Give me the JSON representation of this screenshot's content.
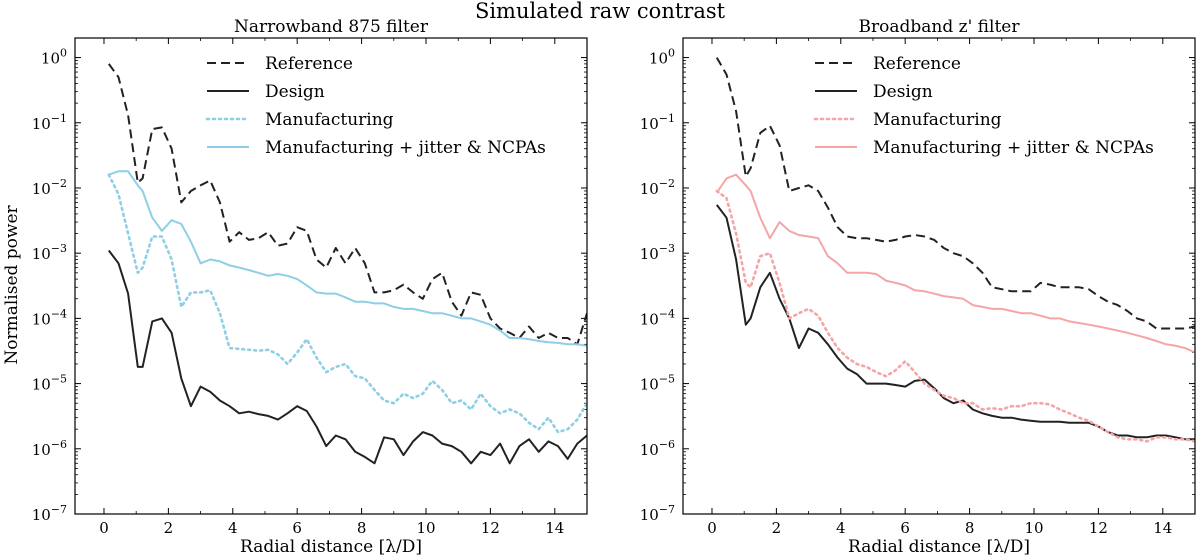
{
  "figure_title": "Simulated raw contrast",
  "chart_data": [
    {
      "type": "line",
      "title": "Narrowband 875 filter",
      "xlabel": "Radial distance [λ/D]",
      "ylabel": "Normalised power",
      "xlim": [
        -0.9,
        15
      ],
      "ylim_log10": [
        -7,
        0.3
      ],
      "yscale": "log",
      "xticks": [
        0,
        2,
        4,
        6,
        8,
        10,
        12,
        14
      ],
      "xtick_labels": [
        "0",
        "2",
        "4",
        "6",
        "8",
        "10",
        "12",
        "14"
      ],
      "yticks_exp": [
        0,
        -1,
        -2,
        -3,
        -4,
        -5,
        -6,
        -7
      ],
      "ytick_labels": [
        "10^0",
        "10^-1",
        "10^-2",
        "10^-3",
        "10^-4",
        "10^-5",
        "10^-6",
        "10^-7"
      ],
      "legend_position": "top-center",
      "series": [
        {
          "name": "Reference",
          "color": "#222222",
          "style": "dashed",
          "x": [
            0.15,
            0.45,
            0.75,
            1.05,
            1.2,
            1.5,
            1.8,
            2.1,
            2.4,
            2.7,
            3.0,
            3.3,
            3.6,
            3.9,
            4.2,
            4.5,
            4.8,
            5.1,
            5.4,
            5.7,
            6.0,
            6.3,
            6.6,
            6.9,
            7.2,
            7.5,
            7.8,
            8.1,
            8.4,
            8.7,
            9.0,
            9.3,
            9.6,
            9.9,
            10.2,
            10.5,
            10.8,
            11.1,
            11.4,
            11.7,
            12.0,
            12.3,
            12.6,
            12.9,
            13.2,
            13.5,
            13.8,
            14.1,
            14.4,
            14.7,
            15.0
          ],
          "y": [
            0.8,
            0.5,
            0.13,
            0.012,
            0.014,
            0.08,
            0.085,
            0.04,
            0.006,
            0.009,
            0.011,
            0.013,
            0.006,
            0.0015,
            0.0021,
            0.0016,
            0.0017,
            0.0021,
            0.0013,
            0.0014,
            0.0025,
            0.0022,
            0.0008,
            0.0006,
            0.0012,
            0.0007,
            0.0012,
            0.0007,
            0.00025,
            0.00025,
            0.00027,
            0.00033,
            0.00025,
            0.0002,
            0.0004,
            0.0005,
            0.00018,
            0.00011,
            0.00025,
            0.00023,
            0.0001,
            7e-05,
            6e-05,
            5e-05,
            7.5e-05,
            5e-05,
            6e-05,
            5e-05,
            5e-05,
            4e-05,
            0.00012
          ]
        },
        {
          "name": "Design",
          "color": "#222222",
          "style": "solid",
          "x": [
            0.15,
            0.45,
            0.75,
            1.05,
            1.2,
            1.5,
            1.8,
            2.1,
            2.4,
            2.7,
            3.0,
            3.3,
            3.6,
            3.9,
            4.2,
            4.5,
            4.8,
            5.1,
            5.4,
            5.7,
            6.0,
            6.3,
            6.6,
            6.9,
            7.2,
            7.5,
            7.8,
            8.1,
            8.4,
            8.7,
            9.0,
            9.3,
            9.6,
            9.9,
            10.2,
            10.5,
            10.8,
            11.1,
            11.4,
            11.7,
            12.0,
            12.3,
            12.6,
            12.9,
            13.2,
            13.5,
            13.8,
            14.1,
            14.4,
            14.7,
            15.0
          ],
          "y": [
            0.0011,
            0.0007,
            0.00024,
            1.8e-05,
            1.8e-05,
            9e-05,
            0.0001,
            6e-05,
            1.2e-05,
            4.5e-06,
            9e-06,
            7.5e-06,
            5.5e-06,
            4.5e-06,
            3.5e-06,
            3.7e-06,
            3.4e-06,
            3.2e-06,
            2.8e-06,
            3.5e-06,
            4.5e-06,
            3.8e-06,
            2.2e-06,
            1.1e-06,
            1.6e-06,
            1.4e-06,
            9e-07,
            7.5e-07,
            6e-07,
            1.5e-06,
            1.4e-06,
            8e-07,
            1.3e-06,
            1.8e-06,
            1.6e-06,
            1.2e-06,
            1.1e-06,
            9e-07,
            6e-07,
            9e-07,
            8e-07,
            1.2e-06,
            6e-07,
            1.1e-06,
            1.4e-06,
            9e-07,
            1.3e-06,
            1.1e-06,
            7e-07,
            1.2e-06,
            1.6e-06
          ]
        },
        {
          "name": "Manufacturing",
          "color": "#8ecfe6",
          "style": "dotted",
          "x": [
            0.15,
            0.45,
            0.75,
            1.05,
            1.2,
            1.5,
            1.8,
            2.1,
            2.4,
            2.7,
            3.0,
            3.3,
            3.6,
            3.9,
            4.2,
            4.5,
            4.8,
            5.1,
            5.4,
            5.7,
            6.0,
            6.3,
            6.6,
            6.9,
            7.2,
            7.5,
            7.8,
            8.1,
            8.4,
            8.7,
            9.0,
            9.3,
            9.6,
            9.9,
            10.2,
            10.5,
            10.8,
            11.1,
            11.4,
            11.7,
            12.0,
            12.3,
            12.6,
            12.9,
            13.2,
            13.5,
            13.8,
            14.1,
            14.4,
            14.7,
            15.0
          ],
          "y": [
            0.016,
            0.008,
            0.002,
            0.0005,
            0.0006,
            0.0018,
            0.0018,
            0.0008,
            0.00015,
            0.00025,
            0.00025,
            0.00027,
            0.00012,
            3.5e-05,
            3.4e-05,
            3.3e-05,
            3.2e-05,
            3.3e-05,
            2.8e-05,
            2e-05,
            3e-05,
            4.8e-05,
            2.5e-05,
            1.5e-05,
            1.8e-05,
            2e-05,
            1.3e-05,
            1.2e-05,
            8e-06,
            5.5e-06,
            5e-06,
            7e-06,
            6e-06,
            7e-06,
            1.1e-05,
            8e-06,
            5e-06,
            5.5e-06,
            4e-06,
            7e-06,
            4.5e-06,
            3.5e-06,
            4e-06,
            3.5e-06,
            2.5e-06,
            2e-06,
            3e-06,
            1.8e-06,
            2e-06,
            2.8e-06,
            5e-06
          ]
        },
        {
          "name": "Manufacturing + jitter & NCPAs",
          "color": "#8ecfe6",
          "style": "solid",
          "x": [
            0.15,
            0.45,
            0.75,
            1.05,
            1.2,
            1.5,
            1.8,
            2.1,
            2.4,
            2.7,
            3.0,
            3.3,
            3.6,
            3.9,
            4.2,
            4.5,
            4.8,
            5.1,
            5.4,
            5.7,
            6.0,
            6.3,
            6.6,
            6.9,
            7.2,
            7.5,
            7.8,
            8.1,
            8.4,
            8.7,
            9.0,
            9.3,
            9.6,
            9.9,
            10.2,
            10.5,
            10.8,
            11.1,
            11.4,
            11.7,
            12.0,
            12.3,
            12.6,
            12.9,
            13.2,
            13.5,
            13.8,
            14.1,
            14.4,
            14.7,
            15.0
          ],
          "y": [
            0.016,
            0.018,
            0.018,
            0.011,
            0.009,
            0.0035,
            0.0022,
            0.0032,
            0.0028,
            0.0015,
            0.0007,
            0.0008,
            0.00075,
            0.00065,
            0.0006,
            0.00055,
            0.0005,
            0.00045,
            0.00048,
            0.00045,
            0.0004,
            0.00032,
            0.00025,
            0.00024,
            0.00024,
            0.00021,
            0.00018,
            0.00018,
            0.00017,
            0.00017,
            0.00015,
            0.00014,
            0.00014,
            0.00013,
            0.00012,
            0.00012,
            0.00011,
            0.0001,
            0.0001,
            9e-05,
            8e-05,
            6.5e-05,
            5e-05,
            5e-05,
            4.8e-05,
            4.5e-05,
            4.3e-05,
            4.2e-05,
            4e-05,
            4e-05,
            3.8e-05
          ]
        }
      ]
    },
    {
      "type": "line",
      "title": "Broadband z' filter",
      "xlabel": "Radial distance [λ/D]",
      "ylabel": "",
      "xlim": [
        -0.9,
        15
      ],
      "ylim_log10": [
        -7,
        0.3
      ],
      "yscale": "log",
      "xticks": [
        0,
        2,
        4,
        6,
        8,
        10,
        12,
        14
      ],
      "xtick_labels": [
        "0",
        "2",
        "4",
        "6",
        "8",
        "10",
        "12",
        "14"
      ],
      "yticks_exp": [
        0,
        -1,
        -2,
        -3,
        -4,
        -5,
        -6,
        -7
      ],
      "ytick_labels": [
        "10^0",
        "10^-1",
        "10^-2",
        "10^-3",
        "10^-4",
        "10^-5",
        "10^-6",
        "10^-7"
      ],
      "legend_position": "top-center",
      "series": [
        {
          "name": "Reference",
          "color": "#222222",
          "style": "dashed",
          "x": [
            0.15,
            0.45,
            0.75,
            1.05,
            1.2,
            1.5,
            1.8,
            2.1,
            2.4,
            2.7,
            3.0,
            3.3,
            3.6,
            3.9,
            4.2,
            4.5,
            4.8,
            5.1,
            5.4,
            5.7,
            6.0,
            6.3,
            6.6,
            6.9,
            7.2,
            7.5,
            7.8,
            8.1,
            8.4,
            8.7,
            9.0,
            9.3,
            9.6,
            9.9,
            10.2,
            10.5,
            10.8,
            11.1,
            11.4,
            11.7,
            12.0,
            12.3,
            12.6,
            12.9,
            13.2,
            13.5,
            13.8,
            14.1,
            14.4,
            14.7,
            15.0
          ],
          "y": [
            1.0,
            0.55,
            0.15,
            0.015,
            0.02,
            0.07,
            0.09,
            0.045,
            0.009,
            0.01,
            0.011,
            0.009,
            0.005,
            0.0025,
            0.0018,
            0.0017,
            0.0017,
            0.0016,
            0.0015,
            0.0016,
            0.0018,
            0.0019,
            0.0018,
            0.0016,
            0.0012,
            0.001,
            0.0009,
            0.0007,
            0.0005,
            0.0003,
            0.00028,
            0.00026,
            0.00026,
            0.00026,
            0.00035,
            0.00033,
            0.0003,
            0.0003,
            0.0003,
            0.00028,
            0.00022,
            0.00018,
            0.00016,
            0.00013,
            0.0001,
            9e-05,
            7e-05,
            7e-05,
            7e-05,
            7e-05,
            7.5e-05
          ]
        },
        {
          "name": "Design",
          "color": "#222222",
          "style": "solid",
          "x": [
            0.15,
            0.45,
            0.75,
            1.05,
            1.2,
            1.5,
            1.8,
            2.1,
            2.4,
            2.7,
            3.0,
            3.3,
            3.6,
            3.9,
            4.2,
            4.5,
            4.8,
            5.1,
            5.4,
            5.7,
            6.0,
            6.3,
            6.6,
            6.9,
            7.2,
            7.5,
            7.8,
            8.1,
            8.4,
            8.7,
            9.0,
            9.3,
            9.6,
            9.9,
            10.2,
            10.5,
            10.8,
            11.1,
            11.4,
            11.7,
            12.0,
            12.3,
            12.6,
            12.9,
            13.2,
            13.5,
            13.8,
            14.1,
            14.4,
            14.7,
            15.0
          ],
          "y": [
            0.0055,
            0.0035,
            0.0008,
            8e-05,
            0.0001,
            0.0003,
            0.0005,
            0.0002,
            0.0001,
            3.5e-05,
            7e-05,
            6e-05,
            4e-05,
            2.5e-05,
            1.7e-05,
            1.4e-05,
            1e-05,
            1e-05,
            1e-05,
            9.5e-06,
            9e-06,
            1.1e-05,
            1.15e-05,
            8.5e-06,
            6e-06,
            5e-06,
            5.5e-06,
            4e-06,
            3.5e-06,
            3.2e-06,
            3e-06,
            3e-06,
            2.8e-06,
            2.7e-06,
            2.6e-06,
            2.6e-06,
            2.6e-06,
            2.5e-06,
            2.5e-06,
            2.5e-06,
            2.2e-06,
            1.8e-06,
            1.6e-06,
            1.6e-06,
            1.5e-06,
            1.5e-06,
            1.6e-06,
            1.6e-06,
            1.5e-06,
            1.4e-06,
            1.4e-06
          ]
        },
        {
          "name": "Manufacturing",
          "color": "#f4a6a6",
          "style": "dotted",
          "x": [
            0.15,
            0.45,
            0.75,
            1.05,
            1.2,
            1.5,
            1.8,
            2.1,
            2.4,
            2.7,
            3.0,
            3.3,
            3.6,
            3.9,
            4.2,
            4.5,
            4.8,
            5.1,
            5.4,
            5.7,
            6.0,
            6.3,
            6.6,
            6.9,
            7.2,
            7.5,
            7.8,
            8.1,
            8.4,
            8.7,
            9.0,
            9.3,
            9.6,
            9.9,
            10.2,
            10.5,
            10.8,
            11.1,
            11.4,
            11.7,
            12.0,
            12.3,
            12.6,
            12.9,
            13.2,
            13.5,
            13.8,
            14.1,
            14.4,
            14.7,
            15.0
          ],
          "y": [
            0.009,
            0.007,
            0.002,
            0.00035,
            0.0003,
            0.0009,
            0.001,
            0.00035,
            0.0001,
            0.00012,
            0.00014,
            0.00011,
            6e-05,
            3.5e-05,
            2.5e-05,
            2e-05,
            1.8e-05,
            1.5e-05,
            1.3e-05,
            1.6e-05,
            2.2e-05,
            1.5e-05,
            1e-05,
            8e-06,
            6.5e-06,
            6e-06,
            5e-06,
            5e-06,
            4e-06,
            4.2e-06,
            4e-06,
            4.5e-06,
            4.5e-06,
            5e-06,
            5e-06,
            4.8e-06,
            4e-06,
            3.5e-06,
            3e-06,
            2.7e-06,
            2.2e-06,
            1.8e-06,
            1.5e-06,
            1.4e-06,
            1.4e-06,
            1.3e-06,
            1.5e-06,
            1.5e-06,
            1.4e-06,
            1.4e-06,
            1.3e-06
          ]
        },
        {
          "name": "Manufacturing + jitter & NCPAs",
          "color": "#f4a6a6",
          "style": "solid",
          "x": [
            0.15,
            0.45,
            0.75,
            1.05,
            1.2,
            1.5,
            1.8,
            2.1,
            2.4,
            2.7,
            3.0,
            3.3,
            3.6,
            3.9,
            4.2,
            4.5,
            4.8,
            5.1,
            5.4,
            5.7,
            6.0,
            6.3,
            6.6,
            6.9,
            7.2,
            7.5,
            7.8,
            8.1,
            8.4,
            8.7,
            9.0,
            9.3,
            9.6,
            9.9,
            10.2,
            10.5,
            10.8,
            11.1,
            11.4,
            11.7,
            12.0,
            12.3,
            12.6,
            12.9,
            13.2,
            13.5,
            13.8,
            14.1,
            14.4,
            14.7,
            15.0
          ],
          "y": [
            0.0085,
            0.014,
            0.016,
            0.011,
            0.009,
            0.0035,
            0.0017,
            0.003,
            0.0022,
            0.0019,
            0.0018,
            0.0017,
            0.0009,
            0.0007,
            0.0005,
            0.0005,
            0.0005,
            0.00048,
            0.00038,
            0.00035,
            0.00032,
            0.00027,
            0.00026,
            0.00024,
            0.00022,
            0.00021,
            0.0002,
            0.00016,
            0.00015,
            0.00014,
            0.00014,
            0.00013,
            0.00012,
            0.00012,
            0.00011,
            0.0001,
            0.0001,
            9e-05,
            8.5e-05,
            8e-05,
            7.5e-05,
            7e-05,
            6.5e-05,
            6e-05,
            5.5e-05,
            5e-05,
            4.5e-05,
            4e-05,
            3.8e-05,
            3.5e-05,
            3e-05
          ]
        }
      ]
    }
  ]
}
